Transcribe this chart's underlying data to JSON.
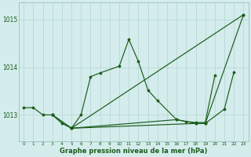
{
  "xlabel": "Graphe pression niveau de la mer (hPa)",
  "bg_color": "#d4ecec",
  "grid_color": "#b8d8d8",
  "line_color": "#1a5c1a",
  "marker_color": "#1a5c1a",
  "series": [
    {
      "x": [
        0,
        1,
        2,
        3,
        4,
        5,
        6,
        7,
        8,
        10,
        11,
        12,
        13,
        14,
        16,
        18,
        19,
        23
      ],
      "y": [
        1013.15,
        1013.15,
        1013.0,
        1013.0,
        1012.82,
        1012.72,
        1013.0,
        1013.8,
        1013.88,
        1014.02,
        1014.58,
        1014.12,
        1013.52,
        1013.3,
        1012.9,
        1012.82,
        1012.82,
        1015.1
      ]
    },
    {
      "x": [
        5,
        23
      ],
      "y": [
        1012.72,
        1015.1
      ]
    },
    {
      "x": [
        3,
        5,
        16,
        17,
        18,
        19,
        20
      ],
      "y": [
        1013.0,
        1012.72,
        1012.9,
        1012.86,
        1012.84,
        1012.84,
        1013.82
      ]
    },
    {
      "x": [
        3,
        5,
        18,
        19,
        21,
        22
      ],
      "y": [
        1013.0,
        1012.72,
        1012.82,
        1012.82,
        1013.12,
        1013.9
      ]
    }
  ],
  "ylim": [
    1012.45,
    1015.35
  ],
  "yticks": [
    1013,
    1014,
    1015
  ],
  "xlim": [
    -0.5,
    23.5
  ],
  "figsize": [
    3.2,
    2.0
  ],
  "dpi": 100
}
